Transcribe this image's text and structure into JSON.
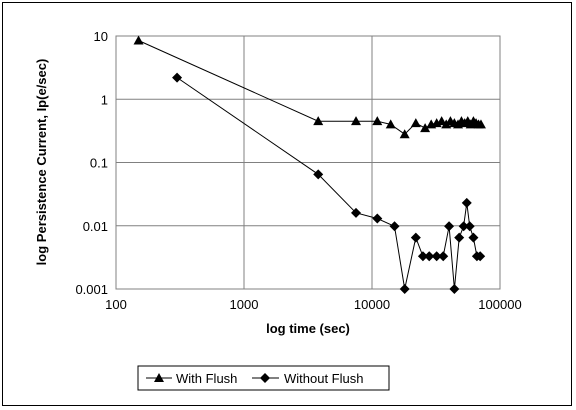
{
  "chart_data": {
    "type": "scatter",
    "title": "",
    "xlabel": "log time (sec)",
    "ylabel": "log Persistence Current, Ip(e/sec)",
    "xscale": "log",
    "yscale": "log",
    "xlim": [
      100,
      100000
    ],
    "ylim": [
      0.001,
      10
    ],
    "x_tick_labels": [
      "100",
      "1000",
      "10000",
      "100000"
    ],
    "y_tick_labels": [
      "0.001",
      "0.01",
      "0.1",
      "1",
      "10"
    ],
    "grid": "major",
    "legend_position": "bottom",
    "series": [
      {
        "name": "With Flush",
        "marker": "triangle",
        "color": "#000000",
        "x": [
          150,
          3800,
          7500,
          11000,
          14000,
          18000,
          22000,
          26000,
          29000,
          32000,
          35000,
          38000,
          41000,
          44000,
          47000,
          50000,
          53000,
          56000,
          59000,
          62000,
          65000,
          68000,
          71000
        ],
        "y": [
          8.5,
          0.45,
          0.45,
          0.45,
          0.4,
          0.28,
          0.42,
          0.35,
          0.4,
          0.42,
          0.45,
          0.4,
          0.45,
          0.42,
          0.4,
          0.45,
          0.42,
          0.45,
          0.4,
          0.45,
          0.42,
          0.4,
          0.4
        ]
      },
      {
        "name": "Without Flush",
        "marker": "diamond",
        "color": "#000000",
        "x": [
          300,
          3800,
          7500,
          11000,
          15000,
          18000,
          22000,
          25000,
          28000,
          32000,
          36000,
          40000,
          44000,
          48000,
          52000,
          55000,
          58000,
          62000,
          66000,
          70000
        ],
        "y": [
          2.2,
          0.065,
          0.016,
          0.013,
          0.0098,
          0.001,
          0.0065,
          0.0033,
          0.0033,
          0.0033,
          0.0033,
          0.0098,
          0.001,
          0.0065,
          0.0098,
          0.023,
          0.0098,
          0.0065,
          0.0033,
          0.0033
        ]
      }
    ]
  }
}
